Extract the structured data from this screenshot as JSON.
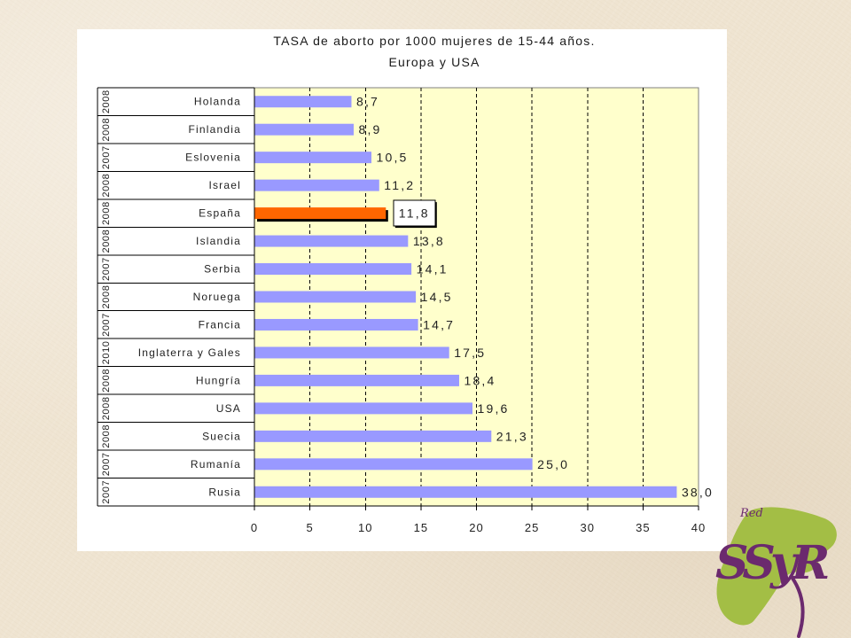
{
  "slide": {
    "background_color": "#EFE4D1",
    "panel_color": "#FFFFFF"
  },
  "chart_data": {
    "type": "bar",
    "orientation": "horizontal",
    "title": "TASA de aborto por 1000 mujeres de 15-44 años.",
    "subtitle": "Europa y USA",
    "categories": [
      "Holanda",
      "Finlandia",
      "Eslovenia",
      "Israel",
      "España",
      "Islandia",
      "Serbia",
      "Noruega",
      "Francia",
      "Inglaterra y Gales",
      "Hungría",
      "USA",
      "Suecia",
      "Rumanía",
      "Rusia"
    ],
    "years": [
      "2008",
      "2008",
      "2007",
      "2008",
      "2008",
      "2008",
      "2007",
      "2008",
      "2007",
      "2010",
      "2008",
      "2008",
      "2008",
      "2007",
      "2007"
    ],
    "values": [
      8.7,
      8.9,
      10.5,
      11.2,
      11.8,
      13.8,
      14.1,
      14.5,
      14.7,
      17.5,
      18.4,
      19.6,
      21.3,
      25.0,
      38.0
    ],
    "data_labels": [
      "8,7",
      "8,9",
      "10,5",
      "11,2",
      "11,8",
      "13,8",
      "14,1",
      "14,5",
      "14,7",
      "17,5",
      "18,4",
      "19,6",
      "21,3",
      "25,0",
      "38,0"
    ],
    "xlim": [
      0,
      40
    ],
    "xticks": [
      0,
      5,
      10,
      15,
      20,
      25,
      30,
      35,
      40
    ],
    "grid": "vertical dashed",
    "bar_color": "#9999FF",
    "plot_background": "#FFFFCC",
    "highlight": {
      "index": 4,
      "color": "#FF6600"
    }
  },
  "logo": {
    "top_text": "Red",
    "letters": "SSyR",
    "green": "#A3BE45",
    "purple": "#6B2A6E"
  }
}
